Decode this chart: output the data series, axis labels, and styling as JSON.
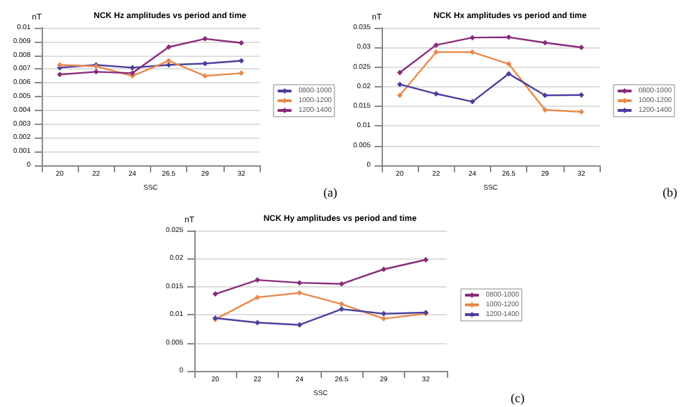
{
  "chart_data": [
    {
      "type": "line",
      "title": "NCK Hz amplitudes vs period and time",
      "xlabel": "SSC",
      "ylabel": "nT",
      "categories": [
        "20",
        "22",
        "24",
        "26.5",
        "29",
        "32"
      ],
      "ylim": [
        0,
        0.01
      ],
      "yticks": [
        0,
        0.001,
        0.002,
        0.003,
        0.004,
        0.005,
        0.006,
        0.007,
        0.008,
        0.009,
        0.01
      ],
      "grid": "y",
      "legend": "right",
      "marker": "diamond",
      "annotations": [
        "(a)"
      ],
      "series": [
        {
          "name": "0800-1000",
          "color": "#4b3f9e",
          "values": [
            0.0071,
            0.0073,
            0.0071,
            0.0073,
            0.0074,
            0.0076
          ]
        },
        {
          "name": "1000-1200",
          "color": "#e8894a",
          "values": [
            0.0073,
            0.0072,
            0.0065,
            0.0076,
            0.0065,
            0.0067
          ]
        },
        {
          "name": "1200-1400",
          "color": "#8a2a7a",
          "values": [
            0.0066,
            0.0068,
            0.0067,
            0.0086,
            0.0092,
            0.0089
          ]
        }
      ]
    },
    {
      "type": "line",
      "title": "NCK Hx amplitudes vs period and time",
      "xlabel": "SSC",
      "ylabel": "nT",
      "categories": [
        "20",
        "22",
        "24",
        "26.5",
        "29",
        "32"
      ],
      "ylim": [
        0,
        0.035
      ],
      "yticks": [
        0,
        0.005,
        0.01,
        0.015,
        0.02,
        0.025,
        0.03,
        0.035
      ],
      "grid": "y",
      "legend": "right",
      "marker": "diamond",
      "annotations": [
        "(b)"
      ],
      "series": [
        {
          "name": "0800-1000",
          "color": "#8a2a7a",
          "values": [
            0.0236,
            0.0306,
            0.0325,
            0.0326,
            0.0312,
            0.03
          ]
        },
        {
          "name": "1000-1200",
          "color": "#e8894a",
          "values": [
            0.0178,
            0.0288,
            0.0288,
            0.0258,
            0.0141,
            0.0136
          ]
        },
        {
          "name": "1200-1400",
          "color": "#4b3f9e",
          "values": [
            0.0206,
            0.0182,
            0.0162,
            0.0233,
            0.0178,
            0.0179
          ]
        }
      ]
    },
    {
      "type": "line",
      "title": "NCK Hy amplitudes vs period and time",
      "xlabel": "SSC",
      "ylabel": "nT",
      "categories": [
        "20",
        "22",
        "24",
        "26.5",
        "29",
        "32"
      ],
      "ylim": [
        0,
        0.025
      ],
      "yticks": [
        0,
        0.005,
        0.01,
        0.015,
        0.02,
        0.025
      ],
      "grid": "y",
      "legend": "right",
      "marker": "diamond",
      "annotations": [
        "(c)"
      ],
      "series": [
        {
          "name": "0800-1000",
          "color": "#8a2a7a",
          "values": [
            0.0137,
            0.0162,
            0.0157,
            0.0155,
            0.0181,
            0.0198
          ]
        },
        {
          "name": "1000-1200",
          "color": "#e8894a",
          "values": [
            0.0092,
            0.0131,
            0.0139,
            0.0119,
            0.0093,
            0.0102
          ]
        },
        {
          "name": "1200-1400",
          "color": "#4b3f9e",
          "values": [
            0.0094,
            0.0086,
            0.0082,
            0.011,
            0.0102,
            0.0104
          ]
        }
      ]
    }
  ]
}
